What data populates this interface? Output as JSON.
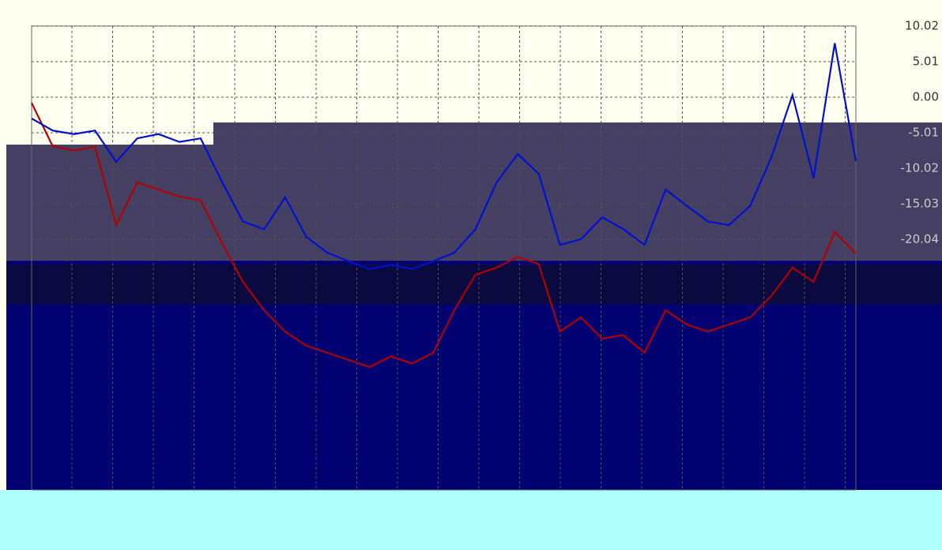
{
  "chart_data": {
    "type": "line",
    "x": [
      0,
      1,
      2,
      3,
      4,
      5,
      6,
      7,
      8,
      9,
      10,
      11,
      12,
      13,
      14,
      15,
      16,
      17,
      18,
      19,
      20,
      21,
      22,
      23,
      24,
      25,
      26,
      27,
      28,
      29,
      30,
      31,
      32,
      33,
      34,
      35,
      36,
      37,
      38,
      39
    ],
    "xlim": [
      0,
      39
    ],
    "series": [
      {
        "color": "#b00000",
        "axis": "y2",
        "values": [
          -0.8,
          -6.9,
          -7.5,
          -7.0,
          -18.0,
          -12.0,
          -13.0,
          -14.0,
          -14.5,
          -20.5,
          -26.0,
          -30.0,
          -33.0,
          -35.0,
          -36.0,
          -37.0,
          -38.0,
          -36.5,
          -37.5,
          -36.0,
          -30.0,
          -25.0,
          -24.0,
          -22.5,
          -23.5,
          -33.0,
          -31.0,
          -34.0,
          -33.5,
          -36.0,
          -30.0,
          -32.0,
          -33.0,
          -32.0,
          -31.0,
          -28.0,
          -24.0,
          -26.0,
          -19.0,
          -22.0
        ]
      },
      {
        "color": "#0010d0",
        "axis": "y2",
        "values": [
          -3.0,
          -4.7,
          -5.2,
          -4.7,
          -9.1,
          -5.8,
          -5.2,
          -6.3,
          -5.8,
          -11.9,
          -17.5,
          -18.6,
          -14.1,
          -19.7,
          -21.9,
          -23.1,
          -24.2,
          -23.6,
          -24.2,
          -23.1,
          -21.9,
          -18.6,
          -12.0,
          -8.0,
          -10.8,
          -20.8,
          -20.0,
          -16.9,
          -18.6,
          -20.8,
          -13.0,
          -15.3,
          -17.5,
          -18.0,
          -15.3,
          -8.5,
          0.3,
          -11.4,
          7.6,
          -9.0
        ]
      }
    ],
    "y2lim": [
      -55.3,
      10.9
    ],
    "y2ticks": [
      10.02,
      5.01,
      {
        "value": 0,
        "label": "0.00"
      },
      -5.01,
      -10.02,
      -15.03,
      -20.04
    ],
    "grid": true
  }
}
